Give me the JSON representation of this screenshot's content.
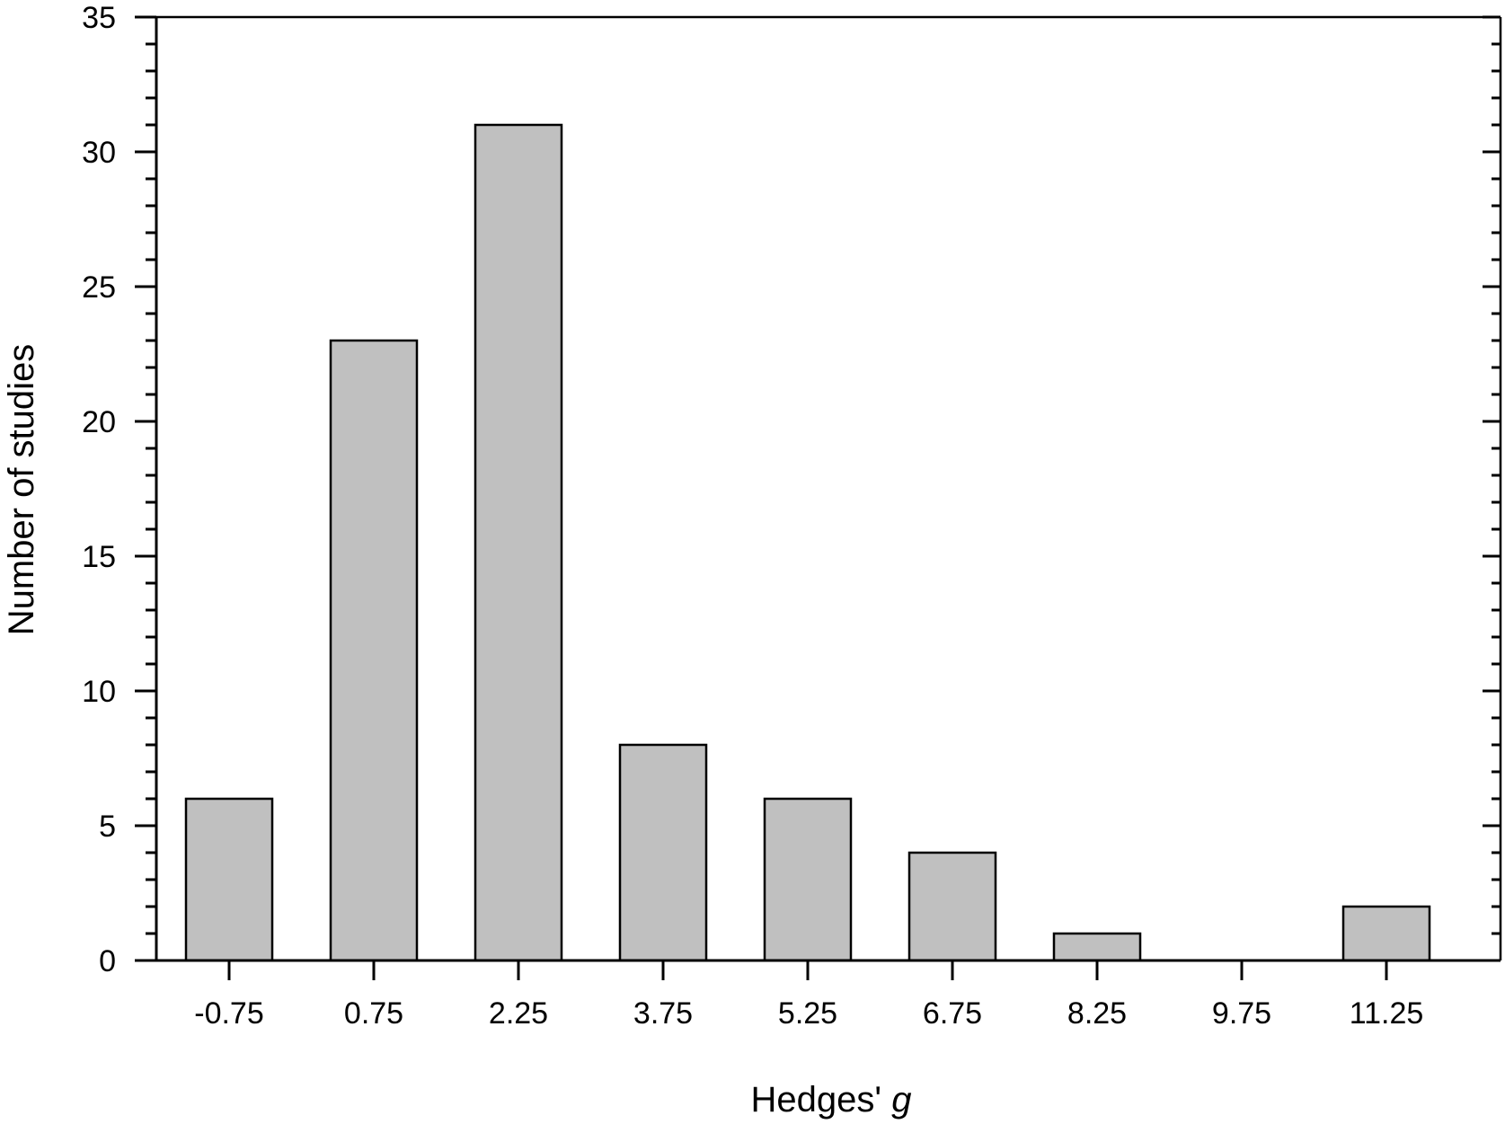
{
  "chart_data": {
    "type": "bar",
    "title": "",
    "xlabel": "Hedges'",
    "xlabel_italic": "g",
    "ylabel": "Number of studies",
    "categories": [
      "-0.75",
      "0.75",
      "2.25",
      "3.75",
      "5.25",
      "6.75",
      "8.25",
      "9.75",
      "11.25"
    ],
    "values": [
      6,
      23,
      31,
      8,
      6,
      4,
      1,
      0,
      2
    ],
    "ylim": [
      0,
      35
    ],
    "yticks": [
      "0",
      "5",
      "10",
      "15",
      "20",
      "25",
      "30",
      "35"
    ],
    "y_minor_step": 1,
    "grid": false,
    "legend": "none",
    "colors": {
      "bar_fill": "#c0c0c0",
      "bar_stroke": "#000000",
      "axis": "#000000"
    }
  }
}
